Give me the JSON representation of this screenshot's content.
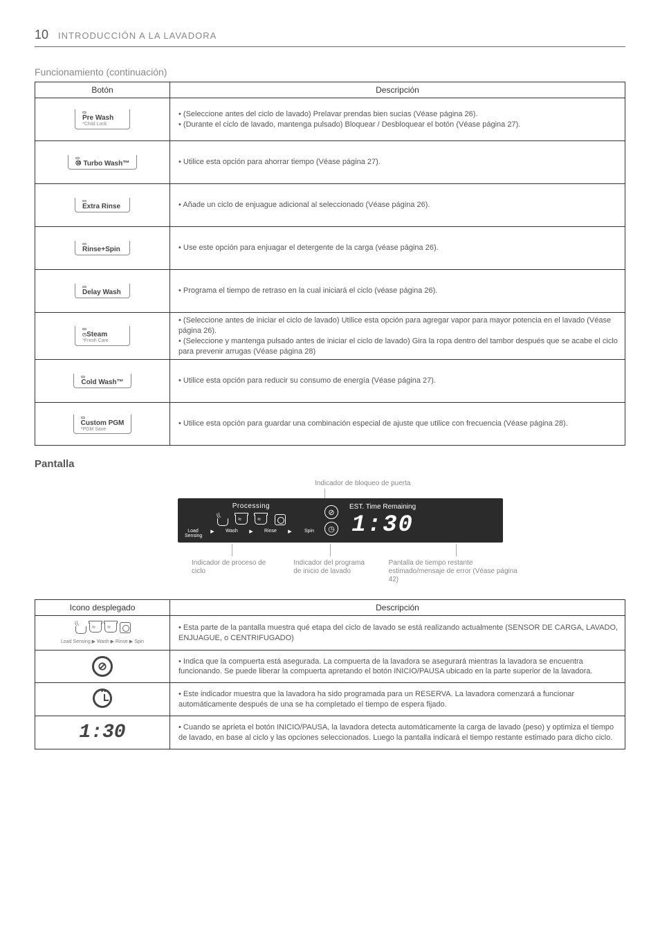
{
  "page": {
    "number": "10",
    "title": "INTRODUCCIÓN A LA LAVADORA"
  },
  "sections": {
    "cont_title": "Funcionamiento (continuación)",
    "pantalla_title": "Pantalla"
  },
  "table1": {
    "head_btn": "Botón",
    "head_desc": "Descripción",
    "rows": [
      {
        "btn_main": "Pre Wash",
        "btn_sub": "*Child Lock",
        "desc": [
          "(Seleccione antes del ciclo de lavado) Prelavar prendas bien sucias (Véase página 26).",
          "(Durante el ciclo de lavado, mantenga pulsado) Bloquear / Desbloquear el botón (Véase página 27)."
        ]
      },
      {
        "btn_main": "⑩ Turbo Wash™",
        "btn_sub": "",
        "desc": [
          "Utilice esta opción para ahorrar tiempo (Véase página 27)."
        ]
      },
      {
        "btn_main": "Extra Rinse",
        "btn_sub": "",
        "desc": [
          "Añade un ciclo de enjuague adicional al seleccionado (Véase página 26)."
        ]
      },
      {
        "btn_main": "Rinse+Spin",
        "btn_sub": "",
        "desc": [
          "Use este opción  para enjuagar el detergente de la carga (véase página 26)."
        ]
      },
      {
        "btn_main": "Delay Wash",
        "btn_sub": "",
        "desc": [
          "Programa el tiempo de retraso en la cual iniciará el ciclo (véase página 26)."
        ]
      },
      {
        "btn_main": "Steam",
        "btn_sub": "*Fresh Care",
        "btn_prefix": "ෆ",
        "desc": [
          "(Seleccione antes de iniciar el ciclo de lavado) Utilice esta opción para agregar vapor para mayor potencia en el lavado (Véase página 26).",
          "(Seleccione y mantenga pulsado antes de iniciar el ciclo de lavado) Gira la ropa dentro del tambor después que se acabe el ciclo para prevenir arrugas (Véase página 28)"
        ]
      },
      {
        "btn_main": "Cold Wash™",
        "btn_sub": "",
        "desc": [
          "Utilice esta opción para reducir su consumo de energía (Véase página 27)."
        ]
      },
      {
        "btn_main": "Custom PGM",
        "btn_sub": "*PGM Save",
        "desc": [
          "Utilice esta opción para guardar una combinación especial de ajuste que utilice con frecuencia (Véase página 28)."
        ]
      }
    ]
  },
  "diagram": {
    "top_label": "Indicador de bloqueo de puerta",
    "processing": "Processing",
    "proc_stages": [
      "Load Sensing",
      "Wash",
      "Rinse",
      "Spin"
    ],
    "est_title": "EST. Time Remaining",
    "time": "1:30",
    "callouts": {
      "c1": "Indicador de proceso de ciclo",
      "c2": "Indicador del programa de inicio de lavado",
      "c3": "Pantalla de tiempo restante estimado/mensaje de error (Véase página 42)"
    }
  },
  "table2": {
    "head_icon": "Icono desplegado",
    "head_desc": "Descripción",
    "rows": [
      {
        "icon": "proc",
        "proc_label": "Load Sensing ▶ Wash ▶ Rinse ▶ Spin",
        "desc": [
          "Esta parte de la pantalla muestra qué etapa del ciclo de lavado se está realizando actualmente (SENSOR DE CARGA, LAVADO, ENJUAGUE, o CENTRIFUGADO)"
        ]
      },
      {
        "icon": "lock",
        "desc": [
          "Indica que la compuerta está asegurada. La compuerta de la lavadora se asegurará mientras la lavadora se encuentra funcionando. Se puede liberar la compuerta apretando el botón INICIO/PAUSA ubicado en la parte superior de la lavadora."
        ]
      },
      {
        "icon": "clock",
        "desc": [
          "Este indicador muestra que la lavadora ha sido programada para un RESERVA. La lavadora comenzará a funcionar automáticamente después de una se ha completado el tiempo de espera fijado."
        ]
      },
      {
        "icon": "time",
        "time": "1:30",
        "desc": [
          "Cuando se aprieta el botón INICIO/PAUSA, la lavadora detecta automáticamente la carga de lavado (peso) y optimiza el tiempo de lavado, en base al ciclo y las opciones seleccionados. Luego la pantalla indicará el tiempo restante estimado para dicho ciclo."
        ]
      }
    ]
  }
}
